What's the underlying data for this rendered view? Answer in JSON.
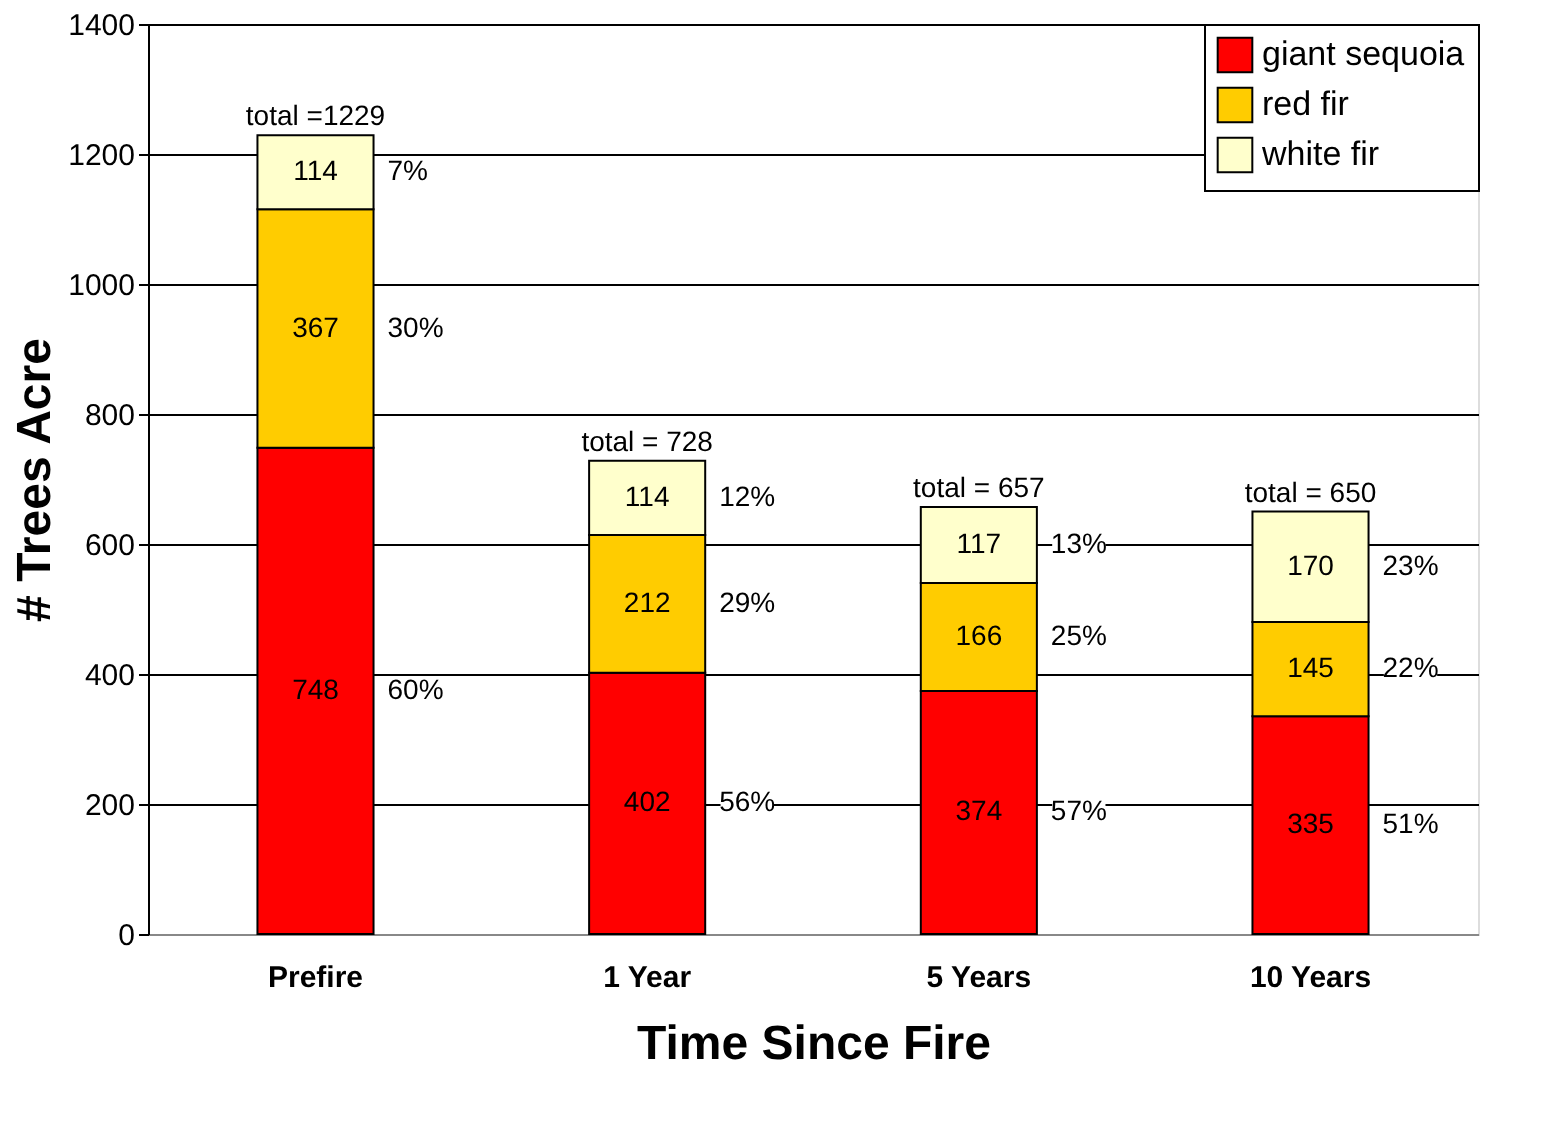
{
  "chart_data": {
    "type": "bar",
    "stacked": true,
    "xlabel": "Time Since Fire",
    "ylabel": "# Trees Acre",
    "categories": [
      "Prefire",
      "1 Year",
      "5 Years",
      "10 Years"
    ],
    "series": [
      {
        "name": "giant sequoia",
        "color": "#ff0000",
        "values": [
          748,
          402,
          374,
          335
        ]
      },
      {
        "name": "red fir",
        "color": "#ffcc00",
        "values": [
          367,
          212,
          166,
          145
        ]
      },
      {
        "name": "white fir",
        "color": "#ffffcc",
        "values": [
          114,
          114,
          117,
          170
        ]
      }
    ],
    "data_labels": true,
    "totals": [
      "total =1229",
      "total = 728",
      "total = 657",
      "total = 650"
    ],
    "annotations": [
      "60%",
      "30%",
      "7%",
      "56%",
      "29%",
      "12%",
      "57%",
      "25%",
      "13%",
      "51%",
      "22%",
      "23%"
    ],
    "ylim": [
      0,
      1400
    ],
    "yticks": [
      0,
      200,
      400,
      600,
      800,
      {
        "value": 1000,
        "label": "1000"
      },
      {
        "value": 1200,
        "label": "1200"
      },
      {
        "value": 1400,
        "label": "1400"
      }
    ],
    "grid": "y",
    "legend": "top right"
  }
}
